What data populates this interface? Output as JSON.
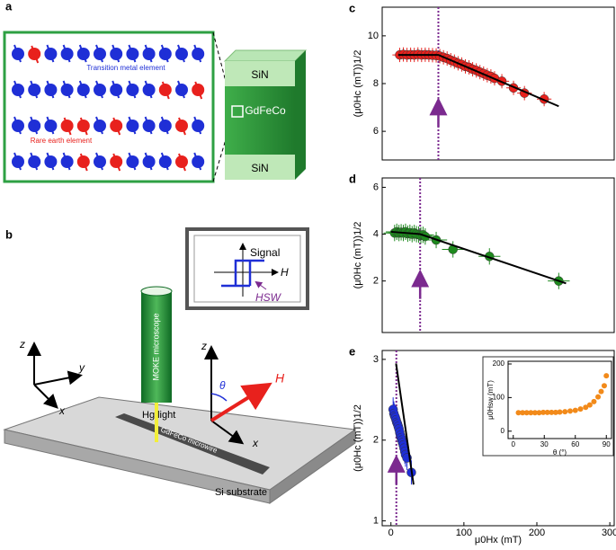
{
  "diagrams": {
    "a": {
      "label": "a",
      "layers": [
        "SiN",
        "GdFeCo",
        "SiN"
      ],
      "tm_label": "Transition metal element",
      "re_label": "Rare earth element"
    },
    "b": {
      "label": "b",
      "signal": "Signal",
      "field": "H",
      "switch": "HSW",
      "microscope": "MOKE microscope",
      "light": "Hg light",
      "wire": "GdFeCo microwire",
      "substrate": "Si substrate",
      "axes_left": [
        "z",
        "y",
        "x"
      ],
      "axes_right": [
        "z",
        "x"
      ],
      "angle": "θ",
      "field_arrow": "H"
    }
  },
  "chart_data": [
    {
      "type": "scatter",
      "label": "c",
      "ylabel": "(μ0Hc (mT))1/2",
      "xlim": [
        -12,
        306
      ],
      "ylim": [
        4.8,
        11.2
      ],
      "yticks": [
        6,
        8,
        10
      ],
      "marker_x": 65,
      "series": [
        {
          "color": "#e8211d",
          "x_error": 10,
          "y_error": 0.3,
          "x": [
            12,
            17,
            22,
            27,
            32,
            37,
            42,
            47,
            52,
            57,
            62,
            67,
            72,
            77,
            82,
            87,
            92,
            97,
            102,
            107,
            112,
            117,
            122,
            127,
            132,
            137,
            142,
            152,
            168,
            183,
            210
          ],
          "values": [
            9.2,
            9.22,
            9.2,
            9.21,
            9.2,
            9.22,
            9.2,
            9.21,
            9.2,
            9.19,
            9.18,
            9.15,
            9.1,
            9.05,
            8.98,
            8.92,
            8.85,
            8.8,
            8.72,
            8.68,
            8.6,
            8.55,
            8.48,
            8.42,
            8.35,
            8.3,
            8.22,
            8.1,
            7.82,
            7.6,
            7.35
          ]
        }
      ],
      "fit_x": [
        10,
        65,
        230
      ],
      "fit_values": [
        9.2,
        9.2,
        7.05
      ]
    },
    {
      "type": "scatter",
      "label": "d",
      "ylabel": "(μ0Hc (mT))1/2",
      "xlim": [
        -12,
        306
      ],
      "ylim": [
        -0.2,
        6.4
      ],
      "yticks": [
        2,
        4,
        6
      ],
      "marker_x": 40,
      "series": [
        {
          "color": "#1e8a1e",
          "x_error": 15,
          "y_error": 0.35,
          "x": [
            5,
            8,
            11,
            14,
            17,
            20,
            23,
            26,
            29,
            32,
            35,
            38,
            41,
            44,
            47,
            62,
            85,
            135,
            230
          ],
          "values": [
            4.05,
            4.1,
            4.05,
            4.08,
            4.05,
            4.1,
            4.02,
            4.06,
            4.0,
            4.05,
            4.0,
            3.98,
            3.95,
            3.97,
            3.9,
            3.75,
            3.35,
            3.05,
            2.0
          ]
        }
      ],
      "fit_x": [
        0,
        40,
        240
      ],
      "fit_values": [
        4.1,
        4.0,
        1.9
      ]
    },
    {
      "type": "scatter",
      "label": "e",
      "ylabel": "(μ0Hc (mT))1/2",
      "xlabel": "μ0Hx (mT)",
      "xlim": [
        -12,
        306
      ],
      "ylim": [
        0.94,
        3.11
      ],
      "xticks": [
        0,
        100,
        200,
        300
      ],
      "yticks": [
        1,
        2,
        3
      ],
      "marker_x": 7.4,
      "series": [
        {
          "color": "#1f2fd6",
          "x_error": 3,
          "y_error": 0.15,
          "x": [
            3,
            4,
            5,
            6,
            7,
            8,
            9,
            10,
            11,
            12,
            13,
            14,
            15,
            16,
            17,
            18,
            19,
            20,
            22,
            28
          ],
          "values": [
            2.38,
            2.33,
            2.3,
            2.28,
            2.25,
            2.22,
            2.2,
            2.17,
            2.14,
            2.1,
            2.06,
            2.03,
            2.0,
            1.97,
            1.94,
            1.9,
            1.86,
            1.82,
            1.78,
            1.6
          ]
        }
      ],
      "fit_x": [
        7,
        31
      ],
      "fit_values": [
        2.95,
        1.45
      ]
    },
    {
      "type": "scatter",
      "ylabel": "μ0Hsw (mT)",
      "xlabel": "θ (°)",
      "xlim": [
        -5,
        95
      ],
      "ylim": [
        -22,
        208
      ],
      "xticks": [
        0,
        30,
        60,
        90
      ],
      "yticks": [
        0,
        100,
        200
      ],
      "series": [
        {
          "color": "#f28a1a",
          "x": [
            5,
            9,
            13,
            17,
            21,
            25,
            29,
            33,
            37,
            41,
            45,
            50,
            55,
            60,
            65,
            70,
            74,
            78,
            82,
            85,
            88,
            90
          ],
          "values": [
            55,
            55,
            55,
            55,
            55,
            55,
            56,
            56,
            56,
            56,
            57,
            58,
            60,
            62,
            66,
            71,
            78,
            88,
            102,
            118,
            135,
            165
          ]
        }
      ]
    }
  ]
}
